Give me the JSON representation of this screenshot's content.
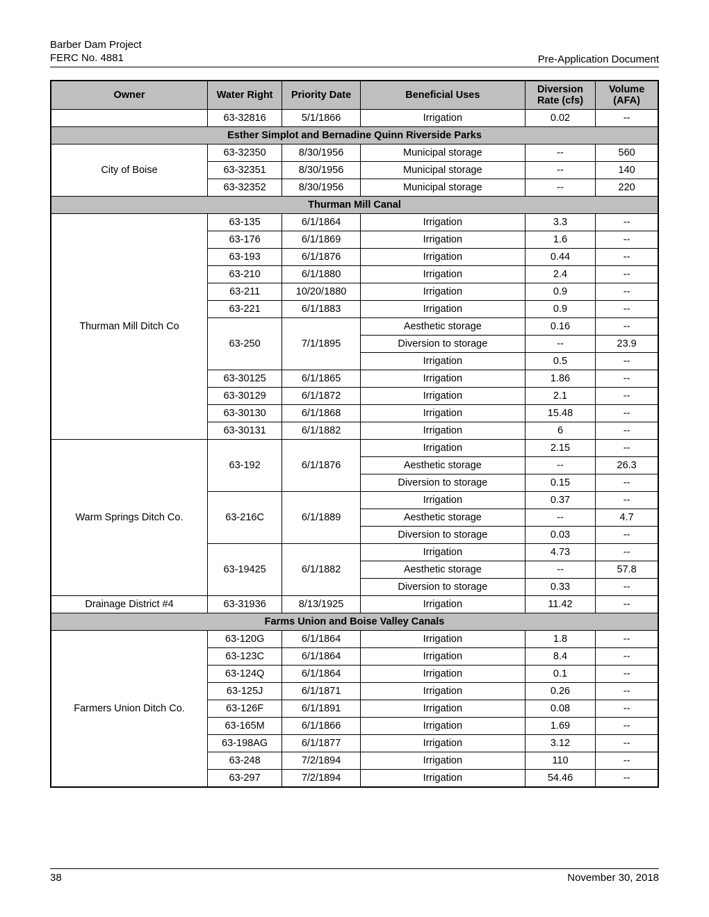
{
  "header": {
    "title_line1": "Barber Dam Project",
    "title_line2": "FERC No. 4881",
    "right": "Pre-Application Document"
  },
  "columns": {
    "owner": "Owner",
    "water_right": "Water Right",
    "priority_date": "Priority Date",
    "beneficial_uses": "Beneficial Uses",
    "diversion_rate": "Diversion Rate (cfs)",
    "volume": "Volume (AFA)"
  },
  "rows": [
    {
      "owner": "",
      "wr": "63-32816",
      "date": "5/1/1866",
      "use": "Irrigation",
      "rate": "0.02",
      "vol": "--"
    },
    {
      "section": "Esther Simplot and Bernadine Quinn Riverside Parks"
    },
    {
      "owner_span": 3,
      "owner": "City of Boise",
      "wr": "63-32350",
      "date": "8/30/1956",
      "use": "Municipal storage",
      "rate": "--",
      "vol": "560"
    },
    {
      "wr": "63-32351",
      "date": "8/30/1956",
      "use": "Municipal storage",
      "rate": "--",
      "vol": "140"
    },
    {
      "wr": "63-32352",
      "date": "8/30/1956",
      "use": "Municipal storage",
      "rate": "--",
      "vol": "220"
    },
    {
      "section": "Thurman Mill Canal"
    },
    {
      "owner_span": 13,
      "owner": "Thurman Mill Ditch Co",
      "wr": "63-135",
      "date": "6/1/1864",
      "use": "Irrigation",
      "rate": "3.3",
      "vol": "--"
    },
    {
      "wr": "63-176",
      "date": "6/1/1869",
      "use": "Irrigation",
      "rate": "1.6",
      "vol": "--"
    },
    {
      "wr": "63-193",
      "date": "6/1/1876",
      "use": "Irrigation",
      "rate": "0.44",
      "vol": "--"
    },
    {
      "wr": "63-210",
      "date": "6/1/1880",
      "use": "Irrigation",
      "rate": "2.4",
      "vol": "--"
    },
    {
      "wr": "63-211",
      "date": "10/20/1880",
      "use": "Irrigation",
      "rate": "0.9",
      "vol": "--"
    },
    {
      "wr": "63-221",
      "date": "6/1/1883",
      "use": "Irrigation",
      "rate": "0.9",
      "vol": "--"
    },
    {
      "wr_span": 3,
      "wr": "63-250",
      "date_span": 3,
      "date": "7/1/1895",
      "use": "Aesthetic storage",
      "rate": "0.16",
      "vol": "--"
    },
    {
      "use": "Diversion to storage",
      "rate": "--",
      "vol": "23.9"
    },
    {
      "use": "Irrigation",
      "rate": "0.5",
      "vol": "--"
    },
    {
      "wr": "63-30125",
      "date": "6/1/1865",
      "use": "Irrigation",
      "rate": "1.86",
      "vol": "--"
    },
    {
      "wr": "63-30129",
      "date": "6/1/1872",
      "use": "Irrigation",
      "rate": "2.1",
      "vol": "--"
    },
    {
      "wr": "63-30130",
      "date": "6/1/1868",
      "use": "Irrigation",
      "rate": "15.48",
      "vol": "--"
    },
    {
      "wr": "63-30131",
      "date": "6/1/1882",
      "use": "Irrigation",
      "rate": "6",
      "vol": "--"
    },
    {
      "owner_span": 9,
      "owner": "Warm Springs Ditch Co.",
      "wr_span": 3,
      "wr": "63-192",
      "date_span": 3,
      "date": "6/1/1876",
      "use": "Irrigation",
      "rate": "2.15",
      "vol": "--"
    },
    {
      "use": "Aesthetic storage",
      "rate": "--",
      "vol": "26.3"
    },
    {
      "use": "Diversion to storage",
      "rate": "0.15",
      "vol": "--"
    },
    {
      "wr_span": 3,
      "wr": "63-216C",
      "date_span": 3,
      "date": "6/1/1889",
      "use": "Irrigation",
      "rate": "0.37",
      "vol": "--"
    },
    {
      "use": "Aesthetic storage",
      "rate": "--",
      "vol": "4.7"
    },
    {
      "use": "Diversion to storage",
      "rate": "0.03",
      "vol": "--"
    },
    {
      "wr_span": 3,
      "wr": "63-19425",
      "date_span": 3,
      "date": "6/1/1882",
      "use": "Irrigation",
      "rate": "4.73",
      "vol": "--"
    },
    {
      "use": "Aesthetic storage",
      "rate": "--",
      "vol": "57.8"
    },
    {
      "use": "Diversion to storage",
      "rate": "0.33",
      "vol": "--"
    },
    {
      "owner": "Drainage District #4",
      "wr": "63-31936",
      "date": "8/13/1925",
      "use": "Irrigation",
      "rate": "11.42",
      "vol": "--"
    },
    {
      "section": "Farms Union and Boise Valley Canals"
    },
    {
      "owner_span": 9,
      "owner": "Farmers Union Ditch Co.",
      "wr": "63-120G",
      "date": "6/1/1864",
      "use": "Irrigation",
      "rate": "1.8",
      "vol": "--"
    },
    {
      "wr": "63-123C",
      "date": "6/1/1864",
      "use": "Irrigation",
      "rate": "8.4",
      "vol": "--"
    },
    {
      "wr": "63-124Q",
      "date": "6/1/1864",
      "use": "Irrigation",
      "rate": "0.1",
      "vol": "--"
    },
    {
      "wr": "63-125J",
      "date": "6/1/1871",
      "use": "Irrigation",
      "rate": "0.26",
      "vol": "--"
    },
    {
      "wr": "63-126F",
      "date": "6/1/1891",
      "use": "Irrigation",
      "rate": "0.08",
      "vol": "--"
    },
    {
      "wr": "63-165M",
      "date": "6/1/1866",
      "use": "Irrigation",
      "rate": "1.69",
      "vol": "--"
    },
    {
      "wr": "63-198AG",
      "date": "6/1/1877",
      "use": "Irrigation",
      "rate": "3.12",
      "vol": "--"
    },
    {
      "wr": "63-248",
      "date": "7/2/1894",
      "use": "Irrigation",
      "rate": "110",
      "vol": "--"
    },
    {
      "wr": "63-297",
      "date": "7/2/1894",
      "use": "Irrigation",
      "rate": "54.46",
      "vol": "--"
    }
  ],
  "footer": {
    "page": "38",
    "date": "November 30, 2018"
  },
  "style": {
    "header_bg": "#bfbfbf",
    "border_color": "#000000",
    "font_family": "Arial",
    "body_fontsize_pt": 11,
    "header_fontsize_pt": 11
  }
}
